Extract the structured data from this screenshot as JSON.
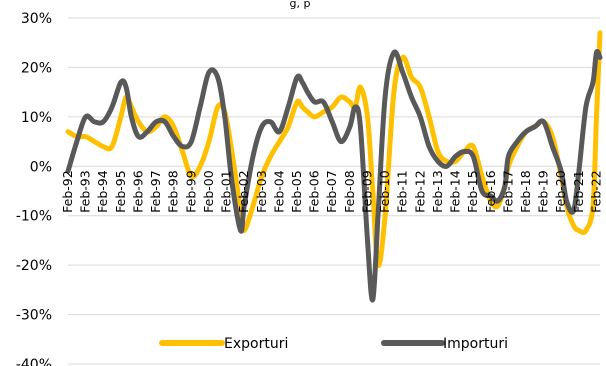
{
  "title_fragment": "g, p",
  "chart_data": {
    "type": "line",
    "title": "",
    "xlabel": "",
    "ylabel": "",
    "ylim": [
      -40,
      30
    ],
    "y_ticks": [
      30,
      20,
      10,
      0,
      -10,
      -20,
      -30,
      -40
    ],
    "y_tick_labels": [
      "30%",
      "20%",
      "10%",
      "0%",
      "-10%",
      "-20%",
      "-30%",
      "-40%"
    ],
    "grid": "horizontal",
    "legend_position": "bottom",
    "x_tick_labels": [
      "Feb-92",
      "Feb-93",
      "Feb-94",
      "Feb-95",
      "Feb-96",
      "Feb-97",
      "Feb-98",
      "Feb-99",
      "Feb-00",
      "Feb-01",
      "Feb-02",
      "Feb-03",
      "Feb-04",
      "Feb-05",
      "Feb-06",
      "Feb-07",
      "Feb-08",
      "Feb-09",
      "Feb-10",
      "Feb-11",
      "Feb-12",
      "Feb-13",
      "Feb-14",
      "Feb-15",
      "Feb-16",
      "Feb-17",
      "Feb-18",
      "Feb-19",
      "Feb-20",
      "Feb-21",
      "Feb-22"
    ],
    "series": [
      {
        "name": "Exporturi",
        "color": "#FFC000",
        "x": [
          1992,
          1992.5,
          1993,
          1993.5,
          1994,
          1994.5,
          1995,
          1995.3,
          1995.6,
          1996,
          1996.5,
          1997,
          1997.5,
          1998,
          1998.5,
          1999,
          1999.5,
          2000,
          2000.5,
          2000.9,
          2001.3,
          2001.8,
          2002,
          2002.5,
          2003,
          2003.5,
          2004,
          2004.5,
          2005,
          2005.3,
          2005.6,
          2006,
          2006.5,
          2007,
          2007.5,
          2008,
          2008.3,
          2008.6,
          2009,
          2009.3,
          2009.6,
          2010,
          2010.5,
          2011,
          2011.5,
          2012,
          2012.5,
          2013,
          2013.5,
          2014,
          2014.5,
          2015,
          2015.5,
          2016,
          2016.4,
          2016.8,
          2017,
          2017.5,
          2018,
          2018.5,
          2019,
          2019.5,
          2020,
          2020.3,
          2020.7,
          2021,
          2021.4,
          2021.8,
          2022,
          2022.2
        ],
        "values": [
          7,
          6,
          6,
          5,
          4,
          4,
          10,
          14,
          12,
          9,
          7,
          8,
          10,
          8,
          3,
          -2,
          0,
          5,
          12,
          11,
          3,
          -9,
          -13,
          -8,
          -2,
          2,
          5,
          8,
          13,
          12,
          11,
          10,
          11,
          12,
          14,
          13,
          12,
          16,
          10,
          -5,
          -20,
          -10,
          15,
          22,
          18,
          16,
          10,
          3,
          1,
          1,
          3,
          4,
          -2,
          -7,
          -8,
          -4,
          0,
          4,
          7,
          8,
          9,
          6,
          -2,
          -8,
          -12,
          -13,
          -13,
          -8,
          10,
          27
        ]
      },
      {
        "name": "Importuri",
        "color": "#595959",
        "x": [
          1992,
          1992.5,
          1993,
          1993.5,
          1994,
          1994.5,
          1995,
          1995.3,
          1995.6,
          1996,
          1996.5,
          1997,
          1997.5,
          1998,
          1998.5,
          1999,
          1999.5,
          2000,
          2000.5,
          2000.9,
          2001.3,
          2001.8,
          2002,
          2002.5,
          2003,
          2003.5,
          2004,
          2004.5,
          2005,
          2005.3,
          2005.6,
          2006,
          2006.5,
          2007,
          2007.5,
          2008,
          2008.3,
          2008.6,
          2009,
          2009.3,
          2009.6,
          2010,
          2010.5,
          2011,
          2011.5,
          2012,
          2012.5,
          2013,
          2013.5,
          2014,
          2014.5,
          2015,
          2015.5,
          2016,
          2016.4,
          2016.8,
          2017,
          2017.5,
          2018,
          2018.5,
          2019,
          2019.5,
          2020,
          2020.3,
          2020.7,
          2021,
          2021.4,
          2021.8,
          2022,
          2022.2
        ],
        "values": [
          -1,
          5,
          10,
          9,
          9,
          12,
          17,
          16,
          10,
          6,
          7,
          9,
          9,
          6,
          4,
          5,
          12,
          19,
          18,
          10,
          -3,
          -13,
          -8,
          2,
          8,
          9,
          7,
          12,
          18,
          17,
          15,
          13,
          13,
          9,
          5,
          8,
          12,
          8,
          -15,
          -27,
          -10,
          14,
          23,
          19,
          14,
          10,
          4,
          1,
          0,
          2,
          3,
          2,
          -5,
          -6,
          -7,
          -4,
          2,
          5,
          7,
          8,
          9,
          4,
          -1,
          -7,
          -9,
          -1,
          12,
          17,
          23,
          22
        ]
      }
    ]
  }
}
